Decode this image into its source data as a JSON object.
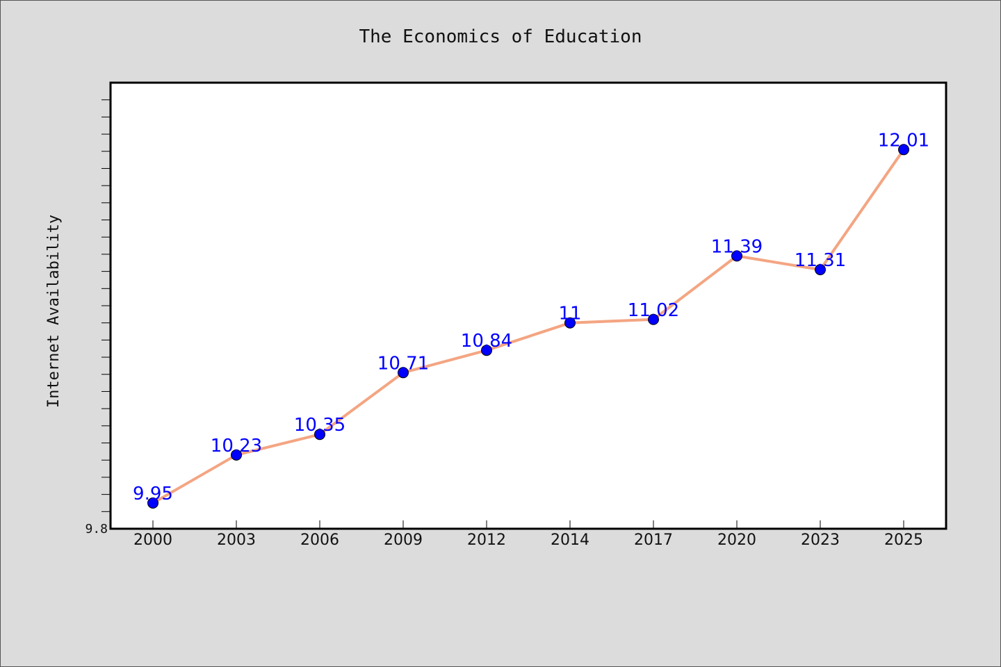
{
  "chart_data": {
    "type": "line",
    "title": "The Economics of Education",
    "xlabel": "",
    "ylabel": "Internet Availability",
    "categories": [
      "2000",
      "2003",
      "2006",
      "2009",
      "2012",
      "2014",
      "2017",
      "2020",
      "2023",
      "2025"
    ],
    "series": [
      {
        "values": [
          9.95,
          10.23,
          10.35,
          10.71,
          10.84,
          11,
          11.02,
          11.39,
          11.31,
          12.01
        ],
        "labels": [
          "9.95",
          "10.23",
          "10.35",
          "10.71",
          "10.84",
          "11",
          "11.02",
          "11.39",
          "11.31",
          "12.01"
        ],
        "line_color": "#f4a582",
        "marker_color": "#0000ff"
      }
    ],
    "ylim": [
      9.8,
      12.4
    ],
    "ytick_labels": [
      "9.8"
    ],
    "y_minor_tick_step": 0.1,
    "grid": false,
    "legend": "none"
  }
}
